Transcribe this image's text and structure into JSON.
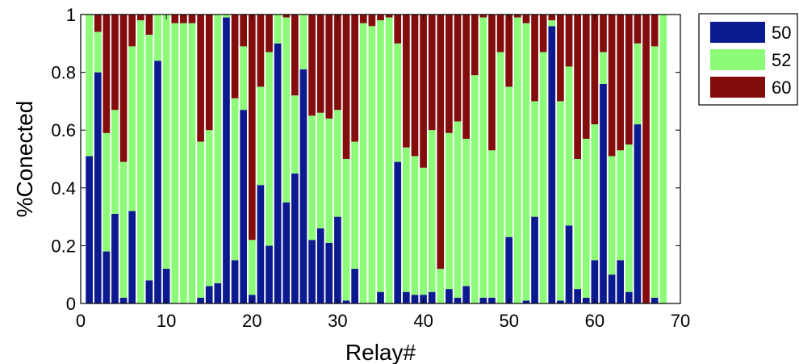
{
  "colors": {
    "s50": "#0c1a90",
    "s52": "#8cfc78",
    "s60": "#830c0c"
  },
  "chart_data": {
    "type": "bar",
    "stacked": true,
    "title": "",
    "xlabel": "Relay#",
    "ylabel": "%Conected",
    "xlim": [
      0,
      70
    ],
    "ylim": [
      0,
      1
    ],
    "xticks": [
      0,
      10,
      20,
      30,
      40,
      50,
      60,
      70
    ],
    "yticks": [
      0,
      0.2,
      0.4,
      0.6,
      0.8,
      1
    ],
    "yticklabels": [
      "0",
      "0.2",
      "0.4",
      "0.6",
      "0.8",
      "1"
    ],
    "grid": false,
    "legend": {
      "position": "outside-top-right",
      "labels": [
        "50",
        "52",
        "60"
      ]
    },
    "x": [
      1,
      2,
      3,
      4,
      5,
      6,
      7,
      8,
      9,
      10,
      11,
      12,
      13,
      14,
      15,
      16,
      17,
      18,
      19,
      20,
      21,
      22,
      23,
      24,
      25,
      26,
      27,
      28,
      29,
      30,
      31,
      32,
      33,
      34,
      35,
      36,
      37,
      38,
      39,
      40,
      41,
      42,
      43,
      44,
      45,
      46,
      47,
      48,
      49,
      50,
      51,
      52,
      53,
      54,
      55,
      56,
      57,
      58,
      59,
      60,
      61,
      62,
      63,
      64,
      65,
      66,
      67,
      68
    ],
    "series": [
      {
        "name": "50",
        "values": [
          0.51,
          0.8,
          0.18,
          0.31,
          0.02,
          0.32,
          0,
          0.08,
          0.84,
          0.12,
          0,
          0,
          0,
          0.02,
          0.06,
          0.07,
          0.99,
          0.15,
          0.67,
          0.03,
          0.41,
          0.2,
          0.9,
          0.35,
          0.45,
          0.81,
          0.22,
          0.26,
          0.21,
          0.3,
          0.01,
          0.12,
          0,
          0,
          0.04,
          0,
          0.49,
          0.04,
          0.03,
          0.03,
          0.04,
          0,
          0.05,
          0.02,
          0.06,
          0,
          0.02,
          0.02,
          0,
          0.23,
          0,
          0.01,
          0.3,
          0,
          0.96,
          0.01,
          0.27,
          0.05,
          0.02,
          0.15,
          0.76,
          0.1,
          0.15,
          0.04,
          0.62,
          0,
          0.02,
          0
        ]
      },
      {
        "name": "52",
        "values": [
          0.49,
          0.14,
          0.41,
          0.36,
          0.47,
          0.57,
          0.98,
          0.85,
          0.16,
          0.88,
          0.97,
          0.97,
          0.97,
          0.54,
          0.54,
          0.93,
          0.01,
          0.56,
          0.22,
          0.19,
          0.34,
          0.67,
          0.1,
          0.64,
          0.27,
          0.19,
          0.43,
          0.4,
          0.43,
          0.37,
          0.49,
          0.44,
          0.97,
          0.96,
          0.94,
          0.99,
          0.41,
          0.5,
          0.48,
          0.44,
          0.56,
          0.12,
          0.54,
          0.61,
          0.51,
          0.79,
          0.97,
          0.51,
          0.87,
          0.52,
          0.99,
          0.96,
          0.4,
          0.87,
          0.02,
          0.69,
          0.55,
          0.45,
          0.55,
          0.47,
          0.11,
          0.41,
          0.38,
          0.51,
          0.28,
          0,
          0.87,
          1.0
        ]
      },
      {
        "name": "60",
        "values": [
          0,
          0.06,
          0.41,
          0.33,
          0.51,
          0.11,
          0.02,
          0.07,
          0,
          0,
          0.03,
          0.03,
          0.03,
          0.44,
          0.4,
          0,
          0,
          0.29,
          0.11,
          0.78,
          0.25,
          0.13,
          0,
          0.01,
          0.28,
          0,
          0.35,
          0.34,
          0.36,
          0.33,
          0.5,
          0.44,
          0.03,
          0.04,
          0.02,
          0.01,
          0.1,
          0.46,
          0.49,
          0.53,
          0.4,
          0.88,
          0.41,
          0.37,
          0.43,
          0.21,
          0.01,
          0.47,
          0.13,
          0.25,
          0.01,
          0.03,
          0.3,
          0.13,
          0.02,
          0.3,
          0.18,
          0.5,
          0.43,
          0.38,
          0.13,
          0.49,
          0.47,
          0.45,
          0.1,
          1.0,
          0.11,
          0
        ]
      }
    ]
  }
}
